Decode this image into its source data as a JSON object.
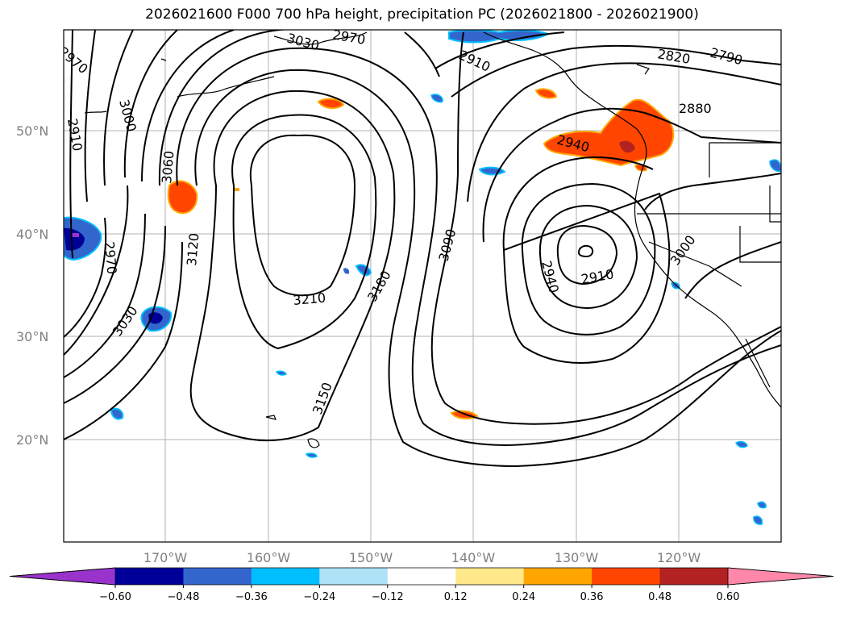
{
  "title": "2026021600 F000 700 hPa height, precipitation PC (2026021800 - 2026021900)",
  "latitude_labels": [
    "50°N",
    "40°N",
    "30°N",
    "20°N"
  ],
  "longitude_labels": [
    "170°W",
    "160°W",
    "150°W",
    "140°W",
    "130°W",
    "120°W"
  ],
  "contour_labels": [
    "2970",
    "3030",
    "2910",
    "2820",
    "2790",
    "2880",
    "3000",
    "2910",
    "3060",
    "2940",
    "2970",
    "3120",
    "3210",
    "3180",
    "3090",
    "2910",
    "2940",
    "3000",
    "3030",
    "3150"
  ],
  "colorbar": {
    "ticks": [
      "−0.60",
      "−0.48",
      "−0.36",
      "−0.24",
      "−0.12",
      "0.12",
      "0.24",
      "0.36",
      "0.48",
      "0.60"
    ],
    "colors": [
      "#9933cc",
      "#000099",
      "#3366cc",
      "#00bfff",
      "#aee3f7",
      "#ffffff",
      "#ffe98a",
      "#ffa500",
      "#ff4500",
      "#b22222",
      "#ff88aa"
    ]
  }
}
